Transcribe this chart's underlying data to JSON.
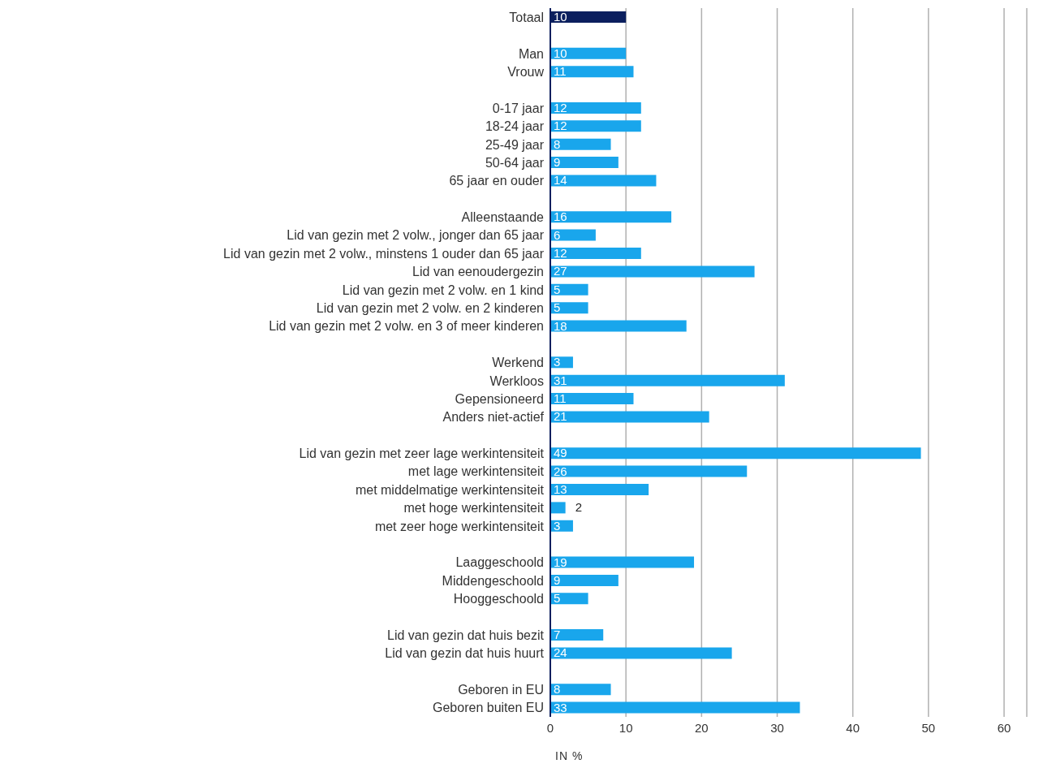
{
  "chart_data": {
    "type": "bar",
    "orientation": "horizontal",
    "xlabel": "IN %",
    "categories": [
      "Totaal",
      null,
      "Man",
      "Vrouw",
      null,
      "0-17 jaar",
      "18-24 jaar",
      "25-49 jaar",
      "50-64 jaar",
      "65 jaar en ouder",
      null,
      "Alleenstaande",
      "Lid van gezin met 2 volw., jonger dan 65 jaar",
      "Lid van gezin met 2 volw., minstens 1 ouder dan 65 jaar",
      "Lid van eenoudergezin",
      "Lid van gezin met 2 volw. en 1 kind",
      "Lid van gezin met 2 volw. en 2 kinderen",
      "Lid van gezin met 2 volw. en 3 of meer kinderen",
      null,
      "Werkend",
      "Werkloos",
      "Gepensioneerd",
      "Anders niet-actief",
      null,
      "Lid van gezin met zeer lage werkintensiteit",
      "met lage werkintensiteit",
      "met middelmatige werkintensiteit",
      "met hoge werkintensiteit",
      "met zeer hoge werkintensiteit",
      null,
      "Laaggeschoold",
      "Middengeschoold",
      "Hooggeschoold",
      null,
      "Lid van gezin dat huis bezit",
      "Lid van gezin dat huis huurt",
      null,
      "Geboren in EU",
      "Geboren buiten EU"
    ],
    "values": [
      10,
      null,
      10,
      11,
      null,
      12,
      12,
      8,
      9,
      14,
      null,
      16,
      6,
      12,
      27,
      5,
      5,
      18,
      null,
      3,
      31,
      11,
      21,
      null,
      49,
      26,
      13,
      2,
      3,
      null,
      19,
      9,
      5,
      null,
      7,
      24,
      null,
      8,
      33
    ],
    "colors": [
      "#0b1f5e",
      null,
      "#19a6ec",
      "#19a6ec",
      null,
      "#19a6ec",
      "#19a6ec",
      "#19a6ec",
      "#19a6ec",
      "#19a6ec",
      null,
      "#19a6ec",
      "#19a6ec",
      "#19a6ec",
      "#19a6ec",
      "#19a6ec",
      "#19a6ec",
      "#19a6ec",
      null,
      "#19a6ec",
      "#19a6ec",
      "#19a6ec",
      "#19a6ec",
      null,
      "#19a6ec",
      "#19a6ec",
      "#19a6ec",
      "#19a6ec",
      "#19a6ec",
      null,
      "#19a6ec",
      "#19a6ec",
      "#19a6ec",
      null,
      "#19a6ec",
      "#19a6ec",
      null,
      "#19a6ec",
      "#19a6ec"
    ],
    "xlim": [
      0,
      63
    ],
    "xticks": [
      0,
      10,
      20,
      30,
      40,
      50,
      60
    ],
    "grid": "x",
    "data_labels": true
  }
}
